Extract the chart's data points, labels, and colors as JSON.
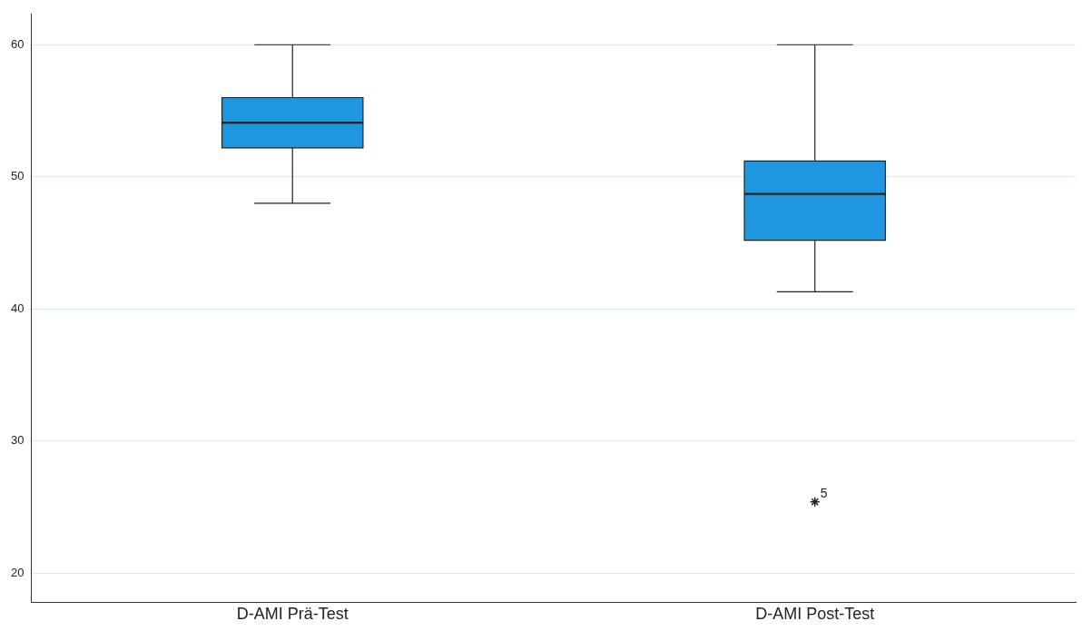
{
  "chart_data": {
    "type": "box",
    "categories": [
      "D-AMI Prä-Test",
      "D-AMI Post-Test"
    ],
    "color": "#1e96e0",
    "boxes": [
      {
        "low": 48,
        "q1": 52.2,
        "median": 54.1,
        "q3": 56,
        "high": 60
      },
      {
        "low": 41.3,
        "q1": 45.2,
        "median": 48.7,
        "q3": 51.2,
        "high": 60,
        "outliers": [
          25.4
        ]
      }
    ],
    "ylim": [
      17.8,
      62.3
    ],
    "yticks": [
      20,
      30,
      40,
      50,
      60
    ],
    "grid": "y",
    "legend": false,
    "marker": "star",
    "annotations": [
      "5"
    ]
  }
}
